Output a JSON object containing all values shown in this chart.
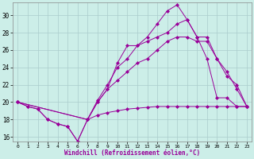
{
  "xlabel": "Windchill (Refroidissement éolien,°C)",
  "bg_color": "#cceee8",
  "grid_color": "#aacccc",
  "line_color": "#990099",
  "xlim": [
    -0.5,
    23.5
  ],
  "ylim": [
    15.5,
    31.5
  ],
  "yticks": [
    16,
    18,
    20,
    22,
    24,
    26,
    28,
    30
  ],
  "xticks": [
    0,
    1,
    2,
    3,
    4,
    5,
    6,
    7,
    8,
    9,
    10,
    11,
    12,
    13,
    14,
    15,
    16,
    17,
    18,
    19,
    20,
    21,
    22,
    23
  ],
  "s1x": [
    0,
    1,
    2,
    3,
    4,
    5,
    6,
    7,
    8,
    9,
    10,
    11,
    12,
    13,
    14,
    15,
    16,
    17,
    18,
    19,
    20,
    21,
    22,
    23
  ],
  "s1y": [
    20.0,
    19.5,
    19.2,
    18.0,
    17.5,
    17.2,
    15.5,
    18.0,
    18.5,
    18.8,
    19.0,
    19.2,
    19.3,
    19.4,
    19.5,
    19.5,
    19.5,
    19.5,
    19.5,
    19.5,
    19.5,
    19.5,
    19.5,
    19.5
  ],
  "s2x": [
    0,
    1,
    2,
    3,
    4,
    5,
    6,
    7,
    8,
    9,
    10,
    11,
    12,
    13,
    14,
    15,
    16,
    17,
    18,
    19,
    20,
    21,
    22,
    23
  ],
  "s2y": [
    20.0,
    19.5,
    19.2,
    18.0,
    17.5,
    17.2,
    15.5,
    18.0,
    20.0,
    21.5,
    24.5,
    26.5,
    26.5,
    27.5,
    29.0,
    30.5,
    31.2,
    29.5,
    27.5,
    25.0,
    20.5,
    20.5,
    19.5,
    19.5
  ],
  "s3x": [
    0,
    7,
    8,
    9,
    10,
    11,
    12,
    13,
    14,
    15,
    16,
    17,
    18,
    19,
    20,
    21,
    22,
    23
  ],
  "s3y": [
    20.0,
    18.0,
    20.0,
    21.5,
    22.5,
    23.5,
    24.5,
    25.0,
    26.0,
    27.0,
    27.5,
    27.5,
    27.0,
    27.0,
    25.0,
    23.0,
    22.0,
    19.5
  ],
  "s4x": [
    0,
    7,
    8,
    9,
    10,
    11,
    12,
    13,
    14,
    15,
    16,
    17,
    18,
    19,
    20,
    21,
    22,
    23
  ],
  "s4y": [
    20.0,
    18.0,
    20.2,
    22.0,
    24.0,
    25.0,
    26.5,
    27.0,
    27.5,
    28.0,
    29.0,
    29.5,
    27.5,
    27.5,
    25.0,
    23.5,
    21.5,
    19.5
  ]
}
